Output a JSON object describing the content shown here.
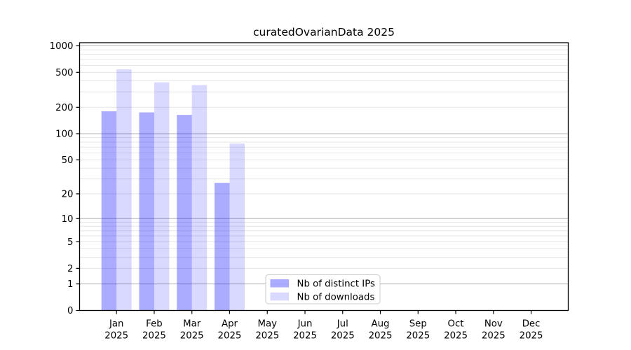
{
  "title": "curatedOvarianData 2025",
  "chart_data": {
    "type": "bar",
    "title": "curatedOvarianData 2025",
    "x_months": [
      "Jan",
      "Feb",
      "Mar",
      "Apr",
      "May",
      "Jun",
      "Jul",
      "Aug",
      "Sep",
      "Oct",
      "Nov",
      "Dec"
    ],
    "x_year": "2025",
    "series": [
      {
        "name": "Nb of distinct IPs",
        "fill": "rgba(0,0,255,0.33)",
        "swatch_hex": "#aaaaf9",
        "values": [
          180,
          175,
          164,
          27,
          0,
          0,
          0,
          0,
          0,
          0,
          0,
          0
        ]
      },
      {
        "name": "Nb of downloads",
        "fill": "rgba(0,0,255,0.15)",
        "swatch_hex": "#d9d9fb",
        "values": [
          540,
          385,
          358,
          77,
          0,
          0,
          0,
          0,
          0,
          0,
          0,
          0
        ]
      }
    ],
    "y_scale": "log1p",
    "y_ticks": [
      0,
      1,
      2,
      5,
      10,
      20,
      50,
      100,
      200,
      500,
      1000
    ],
    "ylim": [
      0,
      1080
    ],
    "grid": "horizontal, log minors",
    "legend_position": "lower center inside plot",
    "colors": {
      "major_grid": "#b3b3b3",
      "minor_grid": "#e5e5e5",
      "frame": "#000000",
      "legend_border": "#cccccc",
      "legend_bg": "#ffffff"
    }
  }
}
